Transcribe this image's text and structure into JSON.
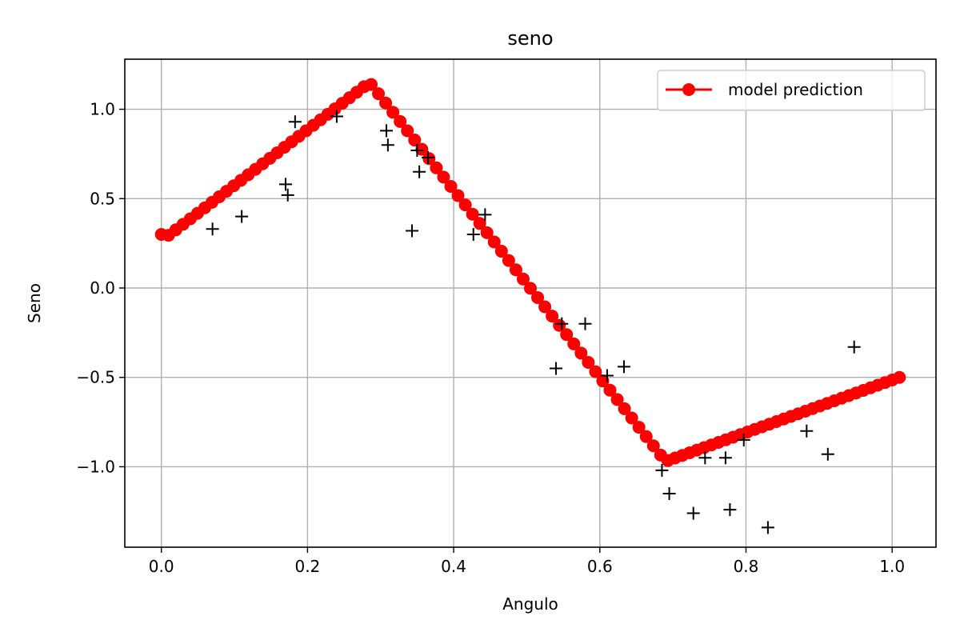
{
  "chart_data": {
    "type": "line",
    "title": "seno",
    "xlabel": "Angulo",
    "ylabel": "Seno",
    "xlim": [
      -0.05,
      1.06
    ],
    "ylim": [
      -1.45,
      1.28
    ],
    "xticks": [
      0.0,
      0.2,
      0.4,
      0.6,
      0.8,
      1.0
    ],
    "xtick_labels": [
      "0.0",
      "0.2",
      "0.4",
      "0.6",
      "0.8",
      "1.0"
    ],
    "yticks": [
      -1.0,
      -0.5,
      0.0,
      0.5,
      1.0
    ],
    "ytick_labels": [
      "−1.0",
      "−0.5",
      "0.0",
      "0.5",
      "1.0"
    ],
    "grid": true,
    "legend": {
      "placement": "top-right",
      "entries": [
        "model prediction"
      ]
    },
    "colors": {
      "prediction": "#ff0000",
      "observations": "#000000",
      "grid": "#b0b0b0"
    },
    "prediction_knots": [
      {
        "x": 0.0,
        "y": 0.3
      },
      {
        "x": 0.01,
        "y": 0.295
      },
      {
        "x": 0.285,
        "y": 1.15
      },
      {
        "x": 0.69,
        "y": -0.97
      },
      {
        "x": 1.01,
        "y": -0.5
      }
    ],
    "prediction_samples": 103,
    "series": [
      {
        "name": "model prediction",
        "marker": "circle",
        "line": true
      },
      {
        "marker": "plus",
        "line": false,
        "points": [
          [
            0.07,
            0.33
          ],
          [
            0.11,
            0.4
          ],
          [
            0.17,
            0.58
          ],
          [
            0.173,
            0.52
          ],
          [
            0.183,
            0.93
          ],
          [
            0.24,
            0.96
          ],
          [
            0.308,
            0.88
          ],
          [
            0.31,
            0.8
          ],
          [
            0.343,
            0.32
          ],
          [
            0.35,
            0.77
          ],
          [
            0.353,
            0.65
          ],
          [
            0.365,
            0.73
          ],
          [
            0.427,
            0.3
          ],
          [
            0.443,
            0.41
          ],
          [
            0.54,
            -0.45
          ],
          [
            0.548,
            -0.2
          ],
          [
            0.58,
            -0.2
          ],
          [
            0.61,
            -0.49
          ],
          [
            0.633,
            -0.44
          ],
          [
            0.685,
            -1.02
          ],
          [
            0.695,
            -1.15
          ],
          [
            0.728,
            -1.26
          ],
          [
            0.744,
            -0.95
          ],
          [
            0.772,
            -0.95
          ],
          [
            0.778,
            -1.24
          ],
          [
            0.797,
            -0.85
          ],
          [
            0.83,
            -1.34
          ],
          [
            0.883,
            -0.8
          ],
          [
            0.912,
            -0.93
          ],
          [
            0.948,
            -0.33
          ]
        ]
      }
    ]
  }
}
